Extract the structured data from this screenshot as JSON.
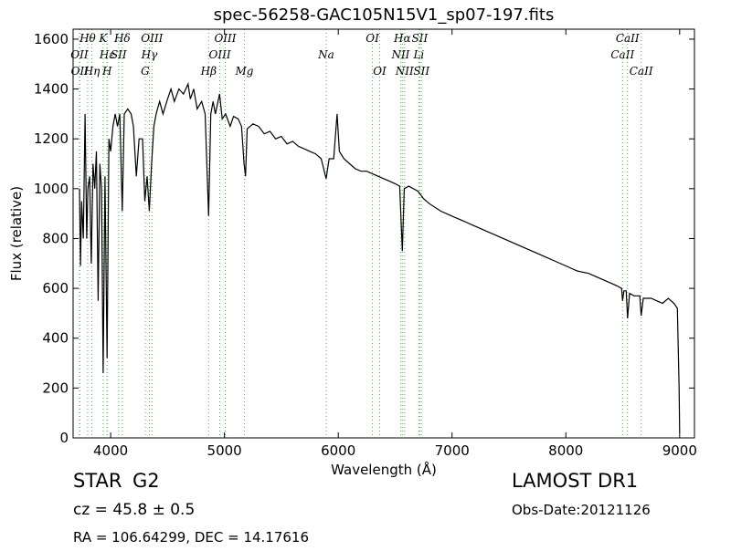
{
  "chart_data": {
    "type": "line",
    "title": "spec-56258-GAC105N15V1_sp07-197.fits",
    "x_label": "Wavelength (Å)",
    "y_label": "Flux (relative)",
    "xlim": [
      3670,
      9130
    ],
    "ylim": [
      0,
      1640
    ],
    "xticks": [
      4000,
      5000,
      6000,
      7000,
      8000,
      9000
    ],
    "yticks": [
      0,
      200,
      400,
      600,
      800,
      1000,
      1200,
      1400,
      1600
    ],
    "color": "#000000",
    "line_color": "#44bb44",
    "x": [
      3726,
      3735,
      3745,
      3760,
      3775,
      3790,
      3800,
      3815,
      3830,
      3845,
      3860,
      3875,
      3890,
      3905,
      3920,
      3934,
      3950,
      3969,
      3985,
      4000,
      4020,
      4040,
      4060,
      4080,
      4102,
      4120,
      4150,
      4180,
      4200,
      4226,
      4250,
      4280,
      4300,
      4320,
      4340,
      4360,
      4380,
      4400,
      4430,
      4460,
      4500,
      4530,
      4560,
      4600,
      4640,
      4680,
      4700,
      4730,
      4760,
      4800,
      4830,
      4861,
      4880,
      4900,
      4920,
      4957,
      4980,
      5010,
      5050,
      5080,
      5120,
      5150,
      5172,
      5185,
      5200,
      5250,
      5300,
      5350,
      5400,
      5450,
      5500,
      5550,
      5600,
      5650,
      5700,
      5750,
      5800,
      5850,
      5893,
      5920,
      5960,
      5990,
      6010,
      6050,
      6100,
      6150,
      6200,
      6250,
      6300,
      6350,
      6400,
      6450,
      6500,
      6540,
      6563,
      6580,
      6620,
      6700,
      6750,
      6800,
      6900,
      7000,
      7100,
      7200,
      7300,
      7400,
      7500,
      7600,
      7700,
      7800,
      7900,
      8000,
      8100,
      8200,
      8300,
      8400,
      8450,
      8490,
      8498,
      8510,
      8530,
      8542,
      8560,
      8600,
      8650,
      8662,
      8680,
      8750,
      8800,
      8850,
      8900,
      8950,
      8980,
      8995,
      9000
    ],
    "values": [
      1000,
      690,
      950,
      800,
      1300,
      800,
      1000,
      1050,
      700,
      1100,
      1000,
      1150,
      550,
      1100,
      1000,
      260,
      1050,
      320,
      1200,
      1150,
      1250,
      1300,
      1250,
      1300,
      910,
      1300,
      1320,
      1300,
      1250,
      1050,
      1200,
      1200,
      950,
      1050,
      910,
      1100,
      1250,
      1300,
      1350,
      1300,
      1360,
      1400,
      1350,
      1400,
      1380,
      1420,
      1360,
      1400,
      1320,
      1350,
      1300,
      890,
      1300,
      1350,
      1300,
      1380,
      1280,
      1300,
      1250,
      1290,
      1280,
      1250,
      1100,
      1050,
      1240,
      1260,
      1250,
      1220,
      1230,
      1200,
      1210,
      1180,
      1190,
      1170,
      1160,
      1150,
      1140,
      1120,
      1040,
      1120,
      1120,
      1300,
      1150,
      1120,
      1100,
      1080,
      1070,
      1070,
      1060,
      1050,
      1040,
      1030,
      1020,
      1010,
      750,
      1000,
      1010,
      990,
      960,
      940,
      910,
      890,
      870,
      850,
      830,
      810,
      790,
      770,
      750,
      730,
      710,
      690,
      670,
      660,
      640,
      620,
      610,
      600,
      550,
      590,
      590,
      480,
      580,
      570,
      570,
      490,
      560,
      560,
      550,
      540,
      560,
      540,
      520,
      200,
      20
    ],
    "lines": [
      {
        "label": "OII",
        "wavelength": 3726
      },
      {
        "label": "OII",
        "wavelength": 3729
      },
      {
        "label": "Hθ",
        "wavelength": 3798
      },
      {
        "label": "Hη",
        "wavelength": 3835
      },
      {
        "label": "Hε",
        "wavelength": 3970
      },
      {
        "label": "K",
        "wavelength": 3934
      },
      {
        "label": "H",
        "wavelength": 3969
      },
      {
        "label": "SII",
        "wavelength": 4070
      },
      {
        "label": "Hδ",
        "wavelength": 4102
      },
      {
        "label": "G",
        "wavelength": 4304
      },
      {
        "label": "Hγ",
        "wavelength": 4340
      },
      {
        "label": "OIII",
        "wavelength": 4363
      },
      {
        "label": "Hβ",
        "wavelength": 4861
      },
      {
        "label": "OIII",
        "wavelength": 4959
      },
      {
        "label": "OIII",
        "wavelength": 5007
      },
      {
        "label": "Mg",
        "wavelength": 5175
      },
      {
        "label": "Na",
        "wavelength": 5894
      },
      {
        "label": "OI",
        "wavelength": 6300
      },
      {
        "label": "OI",
        "wavelength": 6364
      },
      {
        "label": "NII",
        "wavelength": 6548
      },
      {
        "label": "Hα",
        "wavelength": 6563
      },
      {
        "label": "NII",
        "wavelength": 6583
      },
      {
        "label": "Li",
        "wavelength": 6708
      },
      {
        "label": "SII",
        "wavelength": 6716
      },
      {
        "label": "SII",
        "wavelength": 6731
      },
      {
        "label": "CaII",
        "wavelength": 8498
      },
      {
        "label": "CaII",
        "wavelength": 8542
      },
      {
        "label": "CaII",
        "wavelength": 8662
      }
    ]
  },
  "footer": {
    "class": "STAR",
    "subclass": "G2",
    "cz": "cz = 45.8 ± 0.5",
    "coords": "RA = 106.64299, DEC = 14.17616",
    "survey": "LAMOST DR1",
    "obs_date": "Obs-Date:20121126"
  }
}
